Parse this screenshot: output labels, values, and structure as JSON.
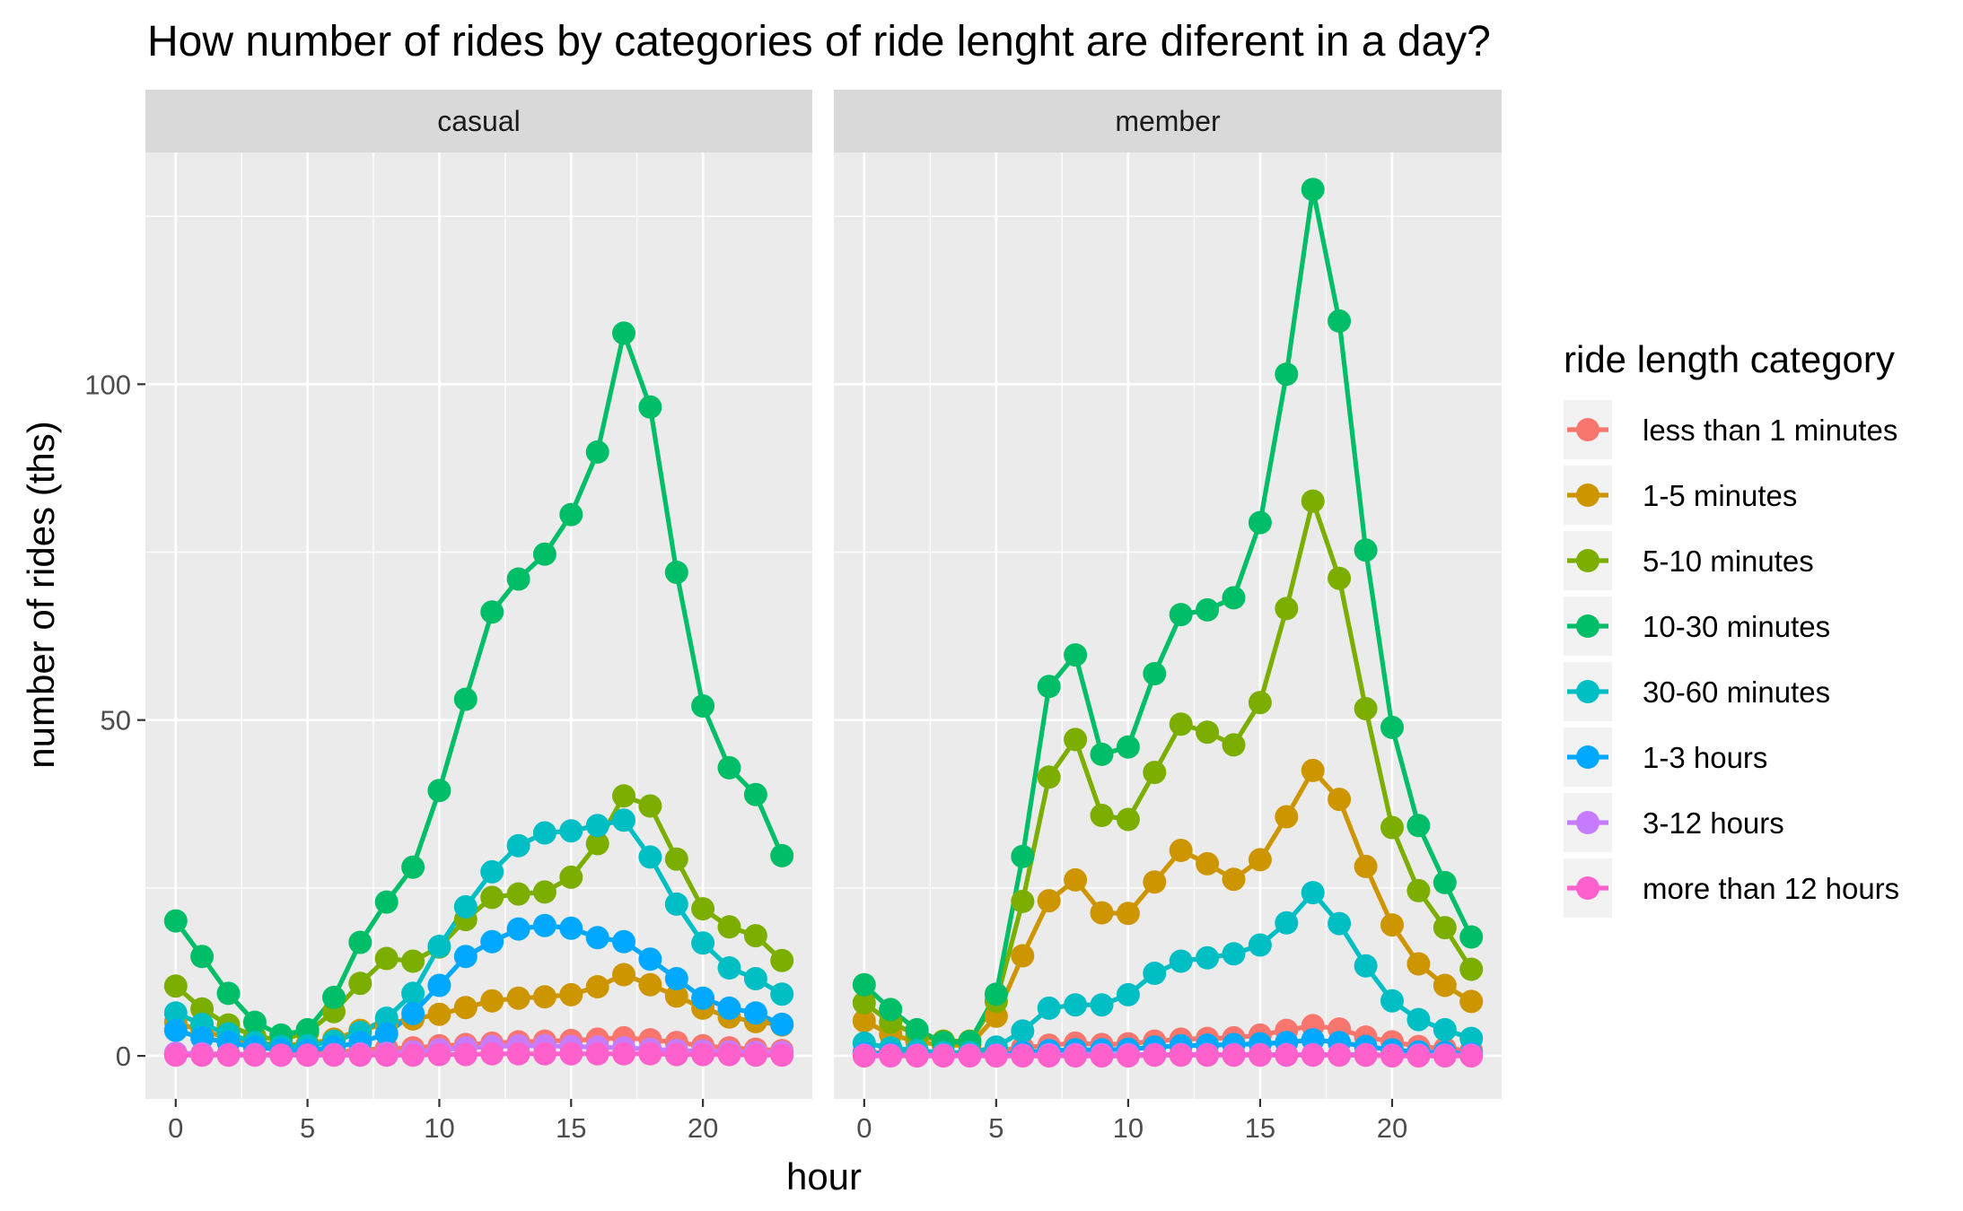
{
  "chart_data": {
    "type": "line",
    "title": "How number of rides by categories of ride lenght are diferent in a day?",
    "xlabel": "hour",
    "ylabel": "number of rides (ths)",
    "facets": [
      "casual",
      "member"
    ],
    "x": [
      0,
      1,
      2,
      3,
      4,
      5,
      6,
      7,
      8,
      9,
      10,
      11,
      12,
      13,
      14,
      15,
      16,
      17,
      18,
      19,
      20,
      21,
      22,
      23
    ],
    "x_ticks": [
      0,
      5,
      10,
      15,
      20
    ],
    "y_ticks": [
      0,
      50,
      100
    ],
    "xlim": [
      -1.15,
      24.15
    ],
    "ylim": [
      -6.4,
      134.5
    ],
    "grid": true,
    "legend": {
      "title": "ride length category",
      "position": "right"
    },
    "series": [
      {
        "name": "less than 1 minutes",
        "color": "#F8766D",
        "values": {
          "casual": [
            0.4,
            0.3,
            0.3,
            0.2,
            0.2,
            0.3,
            0.5,
            0.9,
            1.1,
            1.2,
            1.5,
            1.7,
            1.9,
            2.1,
            2.2,
            2.3,
            2.5,
            2.7,
            2.4,
            2.0,
            1.5,
            1.2,
            1.0,
            0.8
          ],
          "member": [
            0.6,
            0.4,
            0.3,
            0.2,
            0.3,
            0.8,
            1.2,
            1.6,
            1.9,
            1.7,
            1.8,
            2.2,
            2.5,
            2.6,
            2.7,
            3.1,
            3.8,
            4.5,
            4.0,
            2.8,
            2.1,
            1.4,
            1.1,
            0.8
          ]
        }
      },
      {
        "name": "1-5 minutes",
        "color": "#CD9600",
        "values": {
          "casual": [
            5.0,
            3.7,
            2.7,
            2.0,
            1.6,
            1.8,
            2.5,
            3.8,
            4.8,
            5.5,
            6.2,
            7.2,
            8.2,
            8.6,
            8.8,
            9.1,
            10.3,
            12.1,
            10.6,
            8.9,
            7.1,
            5.8,
            5.1,
            4.6
          ],
          "member": [
            5.2,
            3.2,
            2.1,
            1.6,
            1.6,
            5.9,
            14.9,
            23.1,
            26.2,
            21.3,
            21.2,
            25.9,
            30.6,
            28.6,
            26.3,
            29.2,
            35.6,
            42.5,
            38.2,
            28.2,
            19.5,
            13.7,
            10.5,
            8.1
          ]
        }
      },
      {
        "name": "5-10 minutes",
        "color": "#7CAE00",
        "values": {
          "casual": [
            10.4,
            7.0,
            4.6,
            2.9,
            2.4,
            3.5,
            6.6,
            10.8,
            14.5,
            14.1,
            16.2,
            20.3,
            23.6,
            24.1,
            24.4,
            26.6,
            31.6,
            38.7,
            37.2,
            29.3,
            21.9,
            19.2,
            17.9,
            14.2
          ],
          "member": [
            7.9,
            5.0,
            3.1,
            2.2,
            2.2,
            8.1,
            23.0,
            41.5,
            47.1,
            35.8,
            35.2,
            42.2,
            49.4,
            48.2,
            46.3,
            52.6,
            66.6,
            82.6,
            71.1,
            51.7,
            34.0,
            24.6,
            19.1,
            12.9
          ]
        }
      },
      {
        "name": "10-30 minutes",
        "color": "#00BE67",
        "values": {
          "casual": [
            20.1,
            14.8,
            9.3,
            5.0,
            3.1,
            3.9,
            8.7,
            16.9,
            22.9,
            28.1,
            39.5,
            53.1,
            66.1,
            71.0,
            74.7,
            80.6,
            89.9,
            107.6,
            96.6,
            72.0,
            52.1,
            42.9,
            38.9,
            29.8
          ],
          "member": [
            10.6,
            6.9,
            3.9,
            2.0,
            2.1,
            9.2,
            29.7,
            55.0,
            59.7,
            44.9,
            46.0,
            56.9,
            65.7,
            66.4,
            68.2,
            79.4,
            101.5,
            129.0,
            109.4,
            75.3,
            48.9,
            34.3,
            25.8,
            17.7
          ]
        }
      },
      {
        "name": "30-60 minutes",
        "color": "#00BFC4",
        "values": {
          "casual": [
            6.4,
            4.7,
            3.3,
            2.0,
            1.4,
            1.5,
            2.2,
            3.5,
            5.6,
            9.3,
            16.3,
            22.2,
            27.4,
            31.3,
            33.2,
            33.5,
            34.3,
            35.1,
            29.6,
            22.6,
            16.8,
            13.1,
            11.5,
            9.2
          ],
          "member": [
            1.9,
            1.2,
            0.8,
            0.5,
            0.5,
            1.3,
            3.7,
            7.1,
            7.6,
            7.6,
            9.1,
            12.3,
            14.1,
            14.6,
            15.2,
            16.5,
            19.8,
            24.3,
            19.7,
            13.4,
            8.2,
            5.4,
            3.9,
            2.6
          ]
        }
      },
      {
        "name": "1-3 hours",
        "color": "#00A9FF",
        "values": {
          "casual": [
            3.8,
            2.7,
            2.0,
            1.3,
            0.9,
            0.8,
            1.3,
            2.0,
            3.3,
            6.3,
            10.5,
            14.8,
            17.0,
            18.9,
            19.4,
            19.0,
            17.6,
            17.0,
            14.4,
            11.5,
            8.6,
            7.1,
            6.4,
            4.7
          ],
          "member": [
            0.4,
            0.3,
            0.2,
            0.1,
            0.1,
            0.2,
            0.5,
            0.8,
            0.9,
            0.9,
            1.0,
            1.3,
            1.5,
            1.6,
            1.7,
            1.8,
            2.0,
            2.4,
            2.0,
            1.4,
            0.9,
            0.6,
            0.5,
            0.3
          ]
        }
      },
      {
        "name": "3-12 hours",
        "color": "#C77CFF",
        "values": {
          "casual": [
            0.4,
            0.3,
            0.2,
            0.2,
            0.1,
            0.1,
            0.2,
            0.3,
            0.4,
            0.6,
            0.9,
            1.2,
            1.4,
            1.5,
            1.5,
            1.4,
            1.3,
            1.2,
            1.0,
            0.8,
            0.7,
            0.6,
            0.5,
            0.5
          ],
          "member": [
            0.1,
            0.1,
            0.1,
            0.1,
            0.1,
            0.1,
            0.1,
            0.2,
            0.2,
            0.2,
            0.2,
            0.2,
            0.2,
            0.2,
            0.2,
            0.2,
            0.2,
            0.2,
            0.2,
            0.2,
            0.1,
            0.1,
            0.1,
            0.1
          ]
        }
      },
      {
        "name": "more than 12 hours",
        "color": "#FF61CC",
        "values": {
          "casual": [
            0.1,
            0.1,
            0.1,
            0.1,
            0.1,
            0.1,
            0.1,
            0.1,
            0.1,
            0.1,
            0.2,
            0.2,
            0.3,
            0.3,
            0.3,
            0.3,
            0.3,
            0.3,
            0.3,
            0.2,
            0.2,
            0.2,
            0.1,
            0.1
          ],
          "member": [
            0.0,
            0.0,
            0.0,
            0.0,
            0.0,
            0.0,
            0.0,
            0.0,
            0.0,
            0.0,
            0.0,
            0.1,
            0.1,
            0.1,
            0.1,
            0.1,
            0.1,
            0.1,
            0.1,
            0.1,
            0.0,
            0.0,
            0.0,
            0.0
          ]
        }
      }
    ]
  }
}
